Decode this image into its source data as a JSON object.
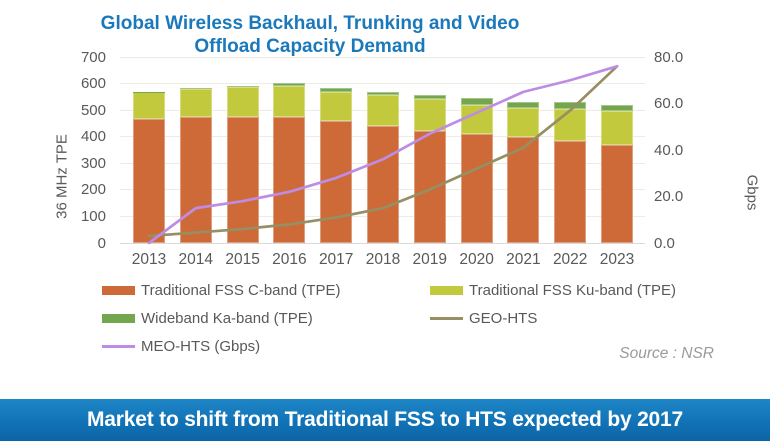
{
  "page": {
    "background": "#ffffff"
  },
  "chart_data": {
    "type": "combo-stacked-bar-line",
    "title": "Global Wireless Backhaul, Trunking and Video Offload Capacity Demand",
    "title_lines": [
      "Global Wireless Backhaul, Trunking and Video",
      "Offload Capacity Demand"
    ],
    "title_color": "#1b79bb",
    "categories": [
      "2013",
      "2014",
      "2015",
      "2016",
      "2017",
      "2018",
      "2019",
      "2020",
      "2021",
      "2022",
      "2023"
    ],
    "left_axis": {
      "label": "36 MHz TPE",
      "min": 0,
      "max": 700,
      "tick_step": 100,
      "tick_labels": [
        "0",
        "100",
        "200",
        "300",
        "400",
        "500",
        "600",
        "700"
      ]
    },
    "right_axis": {
      "label": "Gbps",
      "min": 0,
      "max": 80,
      "tick_step": 20,
      "tick_labels": [
        "0.0",
        "20.0",
        "40.0",
        "60.0",
        "80.0"
      ]
    },
    "bar_series": [
      {
        "name": "Traditional FSS C-band (TPE)",
        "color": "#ce6a38",
        "axis": "left",
        "values": [
          467,
          474,
          476,
          475,
          460,
          441,
          423,
          409,
          398,
          383,
          368
        ]
      },
      {
        "name": "Traditional FSS Ku-band (TPE)",
        "color": "#c3c93c",
        "axis": "left",
        "values": [
          101,
          106,
          111,
          116,
          110,
          116,
          119,
          110,
          110,
          121,
          130
        ]
      },
      {
        "name": "Wideband Ka-band (TPE)",
        "color": "#73a64e",
        "axis": "left",
        "values": [
          1,
          2,
          3,
          10,
          14,
          11,
          15,
          27,
          23,
          27,
          22
        ]
      }
    ],
    "line_series": [
      {
        "name": "GEO-HTS",
        "color": "#968f63",
        "axis": "right",
        "values": [
          3,
          4.5,
          6,
          8,
          11,
          15,
          23,
          32,
          41,
          57,
          76
        ]
      },
      {
        "name": "MEO-HTS (Gbps)",
        "color": "#be8ce2",
        "axis": "right",
        "values": [
          0,
          15,
          18,
          22,
          28,
          36,
          47,
          56,
          65,
          70,
          76
        ]
      }
    ],
    "grid": "horizontal, light",
    "legend_position": "bottom-left, two columns"
  },
  "source_note": "Source : NSR",
  "banner": {
    "text": "Market to shift from Traditional FSS to HTS expected by 2017",
    "background": "#1173b6",
    "text_color": "#ffffff"
  }
}
